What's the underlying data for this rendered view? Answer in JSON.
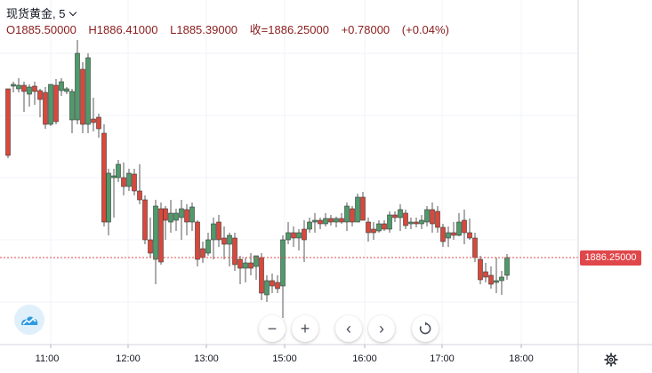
{
  "legend": {
    "symbol": "现货黄金",
    "interval": ", 5",
    "open": "O1885.50000",
    "high": "H1886.41000",
    "low": "L1885.39000",
    "close": "收=1886.25000",
    "change": "+0.78000",
    "change_pct": "(+0.04%)"
  },
  "price_scale": {
    "current_price": "1886.25000"
  },
  "time_axis": {
    "labels": [
      "11:00",
      "12:00",
      "13:00",
      "15:00",
      "16:00",
      "17:00",
      "18:00"
    ]
  },
  "navigation": {
    "zoom_out": "−",
    "zoom_in": "+",
    "scroll_left": "‹",
    "scroll_right": "›"
  },
  "colors": {
    "up": "#26a69a",
    "down": "#ef5350",
    "up_fill": "#4f9a6a",
    "down_fill": "#d9483b",
    "price_line": "#e0474a",
    "grid": "#f0f3fa"
  },
  "icons": [
    "chevron-down-icon",
    "tradingview-logo-icon",
    "reset-icon",
    "settings-icon"
  ],
  "chart_data": {
    "type": "candlestick",
    "title": "现货黄金, 5",
    "interval_minutes": 5,
    "last_close": 1886.25,
    "candles_summary": {
      "last_open": 1885.5,
      "last_high": 1886.41,
      "last_low": 1885.39,
      "last_close": 1886.25
    },
    "grid": true
  }
}
